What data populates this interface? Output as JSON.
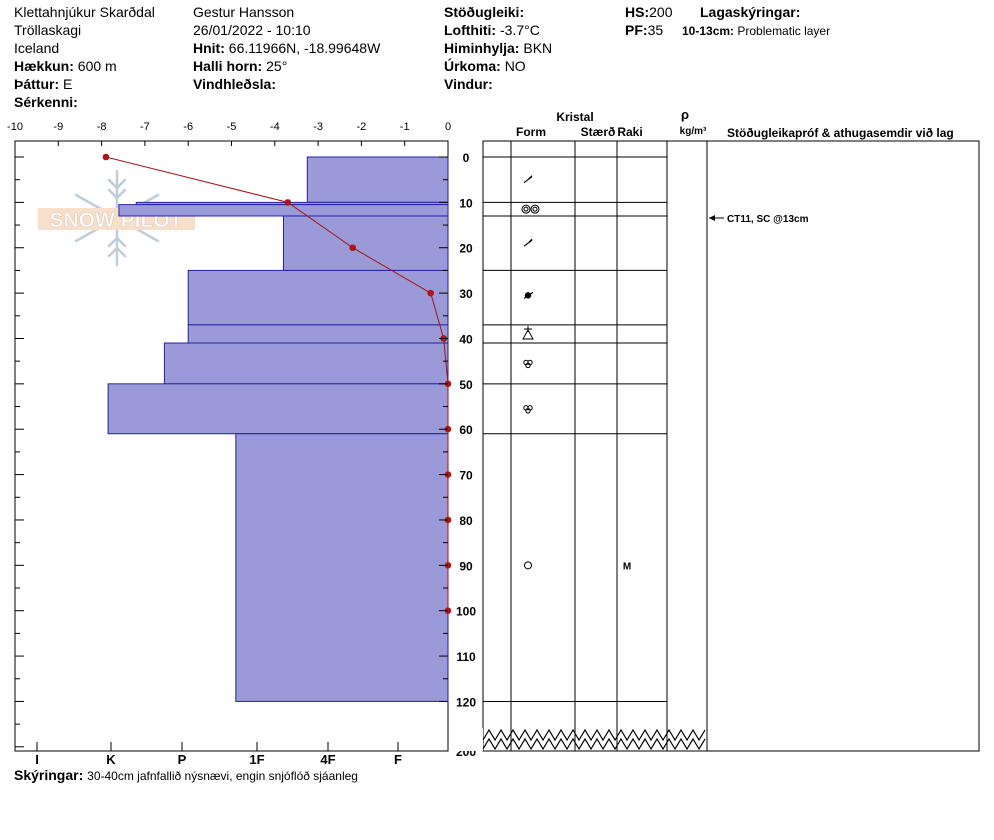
{
  "header": {
    "col1": {
      "location": "Klettahnjúkur Skarðdal",
      "region": "Tröllaskagi",
      "country": "Iceland",
      "elevation_label": "Hækkun:",
      "elevation_value": "600 m",
      "aspect_label": "Þáttur:",
      "aspect_value": "E",
      "special_label": "Sérkenni:"
    },
    "col2": {
      "observer": "Gestur Hansson",
      "datetime": "26/01/2022 - 10:10",
      "coords_label": "Hnit:",
      "coords_value": "66.11966N, -18.99648W",
      "slope_label": "Halli horn:",
      "slope_value": "25°",
      "windload_label": "Vindhleðsla:"
    },
    "col3": {
      "stability_label": "Stöðugleiki:",
      "airtemp_label": "Lofthiti:",
      "airtemp_value": "-3.7°C",
      "sky_label": "Himinhylja:",
      "sky_value": "BKN",
      "precip_label": "Úrkoma:",
      "precip_value": "NO",
      "wind_label": "Vindur:"
    },
    "col4": {
      "hs_label": "HS:",
      "hs_value": "200",
      "pf_label": "PF:",
      "pf_value": "35",
      "layer_notes_label": "Lagaskýringar:",
      "layer_note_range": "10-13cm:",
      "layer_note_text": "Problematic layer"
    }
  },
  "footer": {
    "notes_label": "Skýringar:",
    "notes_text": "30-40cm jafnfallið nýsnævi, engin snjóflóð sjáanleg"
  },
  "logo_text": "SNOW PILOT",
  "columns": {
    "crystal_title": "Kristal",
    "form": "Form",
    "size": "Stærð",
    "moisture": "Raki",
    "density_symbol": "ρ",
    "density_unit": "kg/m³",
    "tests_title": "Stöðugleikapróf & athugasemdir við lag"
  },
  "stability_test": {
    "depth": 13,
    "label": "CT11, SC @13cm"
  },
  "chart_data": {
    "type": "snow-profile",
    "temp_axis": {
      "ticks": [
        -10,
        -9,
        -8,
        -7,
        -6,
        -5,
        -4,
        -3,
        -2,
        -1,
        0
      ]
    },
    "depth_axis": {
      "ticks": [
        0,
        10,
        20,
        30,
        40,
        50,
        60,
        70,
        80,
        90,
        100,
        110,
        120
      ],
      "break_label": 200,
      "max_depth": 200
    },
    "hardness_axis": {
      "labels": [
        "I",
        "K",
        "P",
        "1F",
        "4F",
        "F"
      ]
    },
    "hardness_layers": [
      {
        "top": 0,
        "bottom": 10,
        "hardness": 3.25
      },
      {
        "top": 10,
        "bottom": 10.5,
        "hardness": 7.2
      },
      {
        "top": 10.5,
        "bottom": 13,
        "hardness": 7.6
      },
      {
        "top": 13,
        "bottom": 25,
        "hardness": 3.8
      },
      {
        "top": 25,
        "bottom": 37,
        "hardness": 6.0
      },
      {
        "top": 37,
        "bottom": 41,
        "hardness": 6.0
      },
      {
        "top": 41,
        "bottom": 50,
        "hardness": 6.55
      },
      {
        "top": 50,
        "bottom": 61,
        "hardness": 7.85
      },
      {
        "top": 61,
        "bottom": 120,
        "hardness": 4.9
      }
    ],
    "temperature_profile": {
      "depth": [
        0,
        10,
        20,
        30,
        40,
        50,
        60,
        70,
        80,
        90,
        100
      ],
      "temp": [
        -7.9,
        -3.7,
        -2.2,
        -0.4,
        -0.1,
        0.0,
        0.0,
        0.0,
        0.0,
        0.0,
        0.0
      ]
    },
    "layer_boundaries": [
      0,
      10,
      13,
      25,
      37,
      41,
      50,
      61,
      120
    ],
    "crystal_forms": [
      {
        "depth": 5,
        "form": "decomposing"
      },
      {
        "depth": 11.5,
        "form": "surface-hoar"
      },
      {
        "depth": 19,
        "form": "decomposing"
      },
      {
        "depth": 30.5,
        "form": "ice-lens"
      },
      {
        "depth": 39,
        "form": "depth-hoar"
      },
      {
        "depth": 45.5,
        "form": "melt-forms"
      },
      {
        "depth": 55.5,
        "form": "melt-forms"
      },
      {
        "depth": 90,
        "form": "rounded",
        "moisture": "M"
      }
    ]
  }
}
